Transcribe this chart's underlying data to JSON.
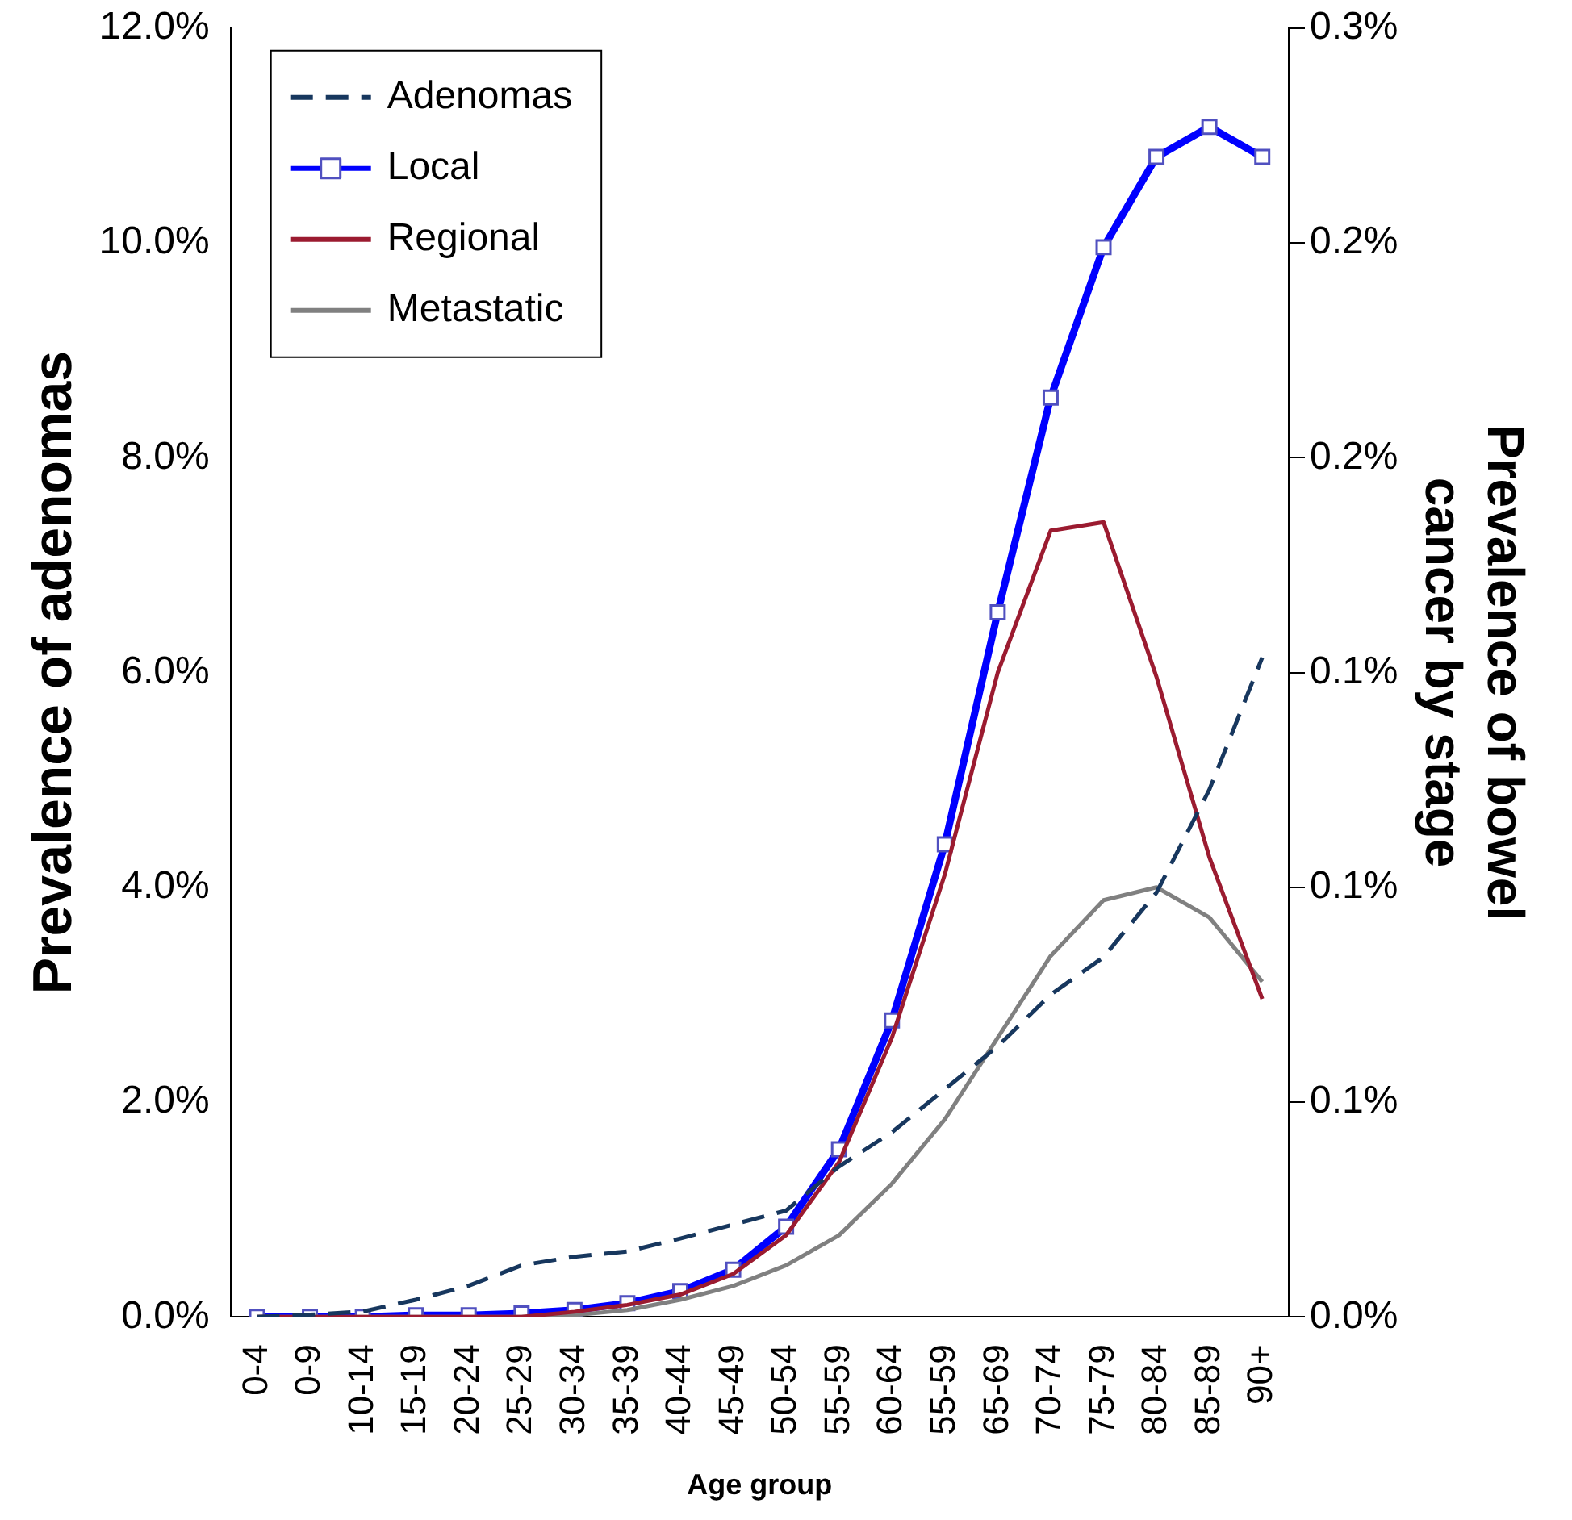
{
  "chart_data": {
    "type": "line",
    "xlabel": "Age group",
    "ylabel": "Prevalence of adenomas",
    "y2label": "Prevalence of bowel\ncancer by stage",
    "categories": [
      "0-4",
      "0-9",
      "10-14",
      "15-19",
      "20-24",
      "25-29",
      "30-34",
      "35-39",
      "40-44",
      "45-49",
      "50-54",
      "55-59",
      "60-64",
      "55-59",
      "65-69",
      "70-74",
      "75-79",
      "80-84",
      "85-89",
      "90+"
    ],
    "ylim": [
      0,
      12
    ],
    "yticks": [
      {
        "value": 0,
        "label": "0.0%"
      },
      {
        "value": 2,
        "label": "2.0%"
      },
      {
        "value": 4,
        "label": "4.0%"
      },
      {
        "value": 6,
        "label": "6.0%"
      },
      {
        "value": 8,
        "label": "8.0%"
      },
      {
        "value": 10,
        "label": "10.0%"
      },
      {
        "value": 12,
        "label": "12.0%"
      }
    ],
    "y2lim": [
      0,
      0.3
    ],
    "y2ticks": [
      {
        "value": 0,
        "label": "0.0%"
      },
      {
        "value": 0.05,
        "label": "0.1%"
      },
      {
        "value": 0.1,
        "label": "0.1%"
      },
      {
        "value": 0.15,
        "label": "0.1%"
      },
      {
        "value": 0.2,
        "label": "0.2%"
      },
      {
        "value": 0.25,
        "label": "0.2%"
      },
      {
        "value": 0.3,
        "label": "0.3%"
      }
    ],
    "grid": false,
    "legend": "top left",
    "series": [
      {
        "name": "Adenomas",
        "color": "#17375e",
        "marker": "none",
        "line_style": "dashed",
        "values": [
          0,
          0.02,
          0.05,
          0.16,
          0.29,
          0.48,
          0.56,
          0.61,
          0.73,
          0.86,
          0.99,
          1.4,
          1.72,
          2.12,
          2.52,
          3.0,
          3.35,
          3.95,
          4.91,
          6.14
        ]
      },
      {
        "name": "Local",
        "color": "#0000ff",
        "marker": "square",
        "line_style": "solid",
        "axis": "y2",
        "values": [
          0,
          0,
          0,
          0.0004,
          0.0004,
          0.0008,
          0.0016,
          0.0032,
          0.006,
          0.011,
          0.021,
          0.039,
          0.069,
          0.11,
          0.164,
          0.214,
          0.249,
          0.27,
          0.277,
          0.27
        ]
      },
      {
        "name": "Regional",
        "color": "#9b1b30",
        "marker": "none",
        "line_style": "solid",
        "axis": "y2",
        "values": [
          0,
          0,
          0,
          0,
          0,
          0,
          0.0012,
          0.0028,
          0.0052,
          0.01,
          0.019,
          0.036,
          0.065,
          0.103,
          0.15,
          0.183,
          0.185,
          0.149,
          0.107,
          0.074
        ]
      },
      {
        "name": "Metastatic",
        "color": "#808080",
        "marker": "none",
        "line_style": "solid",
        "axis": "y2",
        "values": [
          0,
          0,
          0,
          0,
          0,
          0,
          0.0004,
          0.0016,
          0.004,
          0.0072,
          0.012,
          0.019,
          0.031,
          0.046,
          0.065,
          0.084,
          0.097,
          0.1,
          0.093,
          0.078
        ]
      }
    ]
  }
}
